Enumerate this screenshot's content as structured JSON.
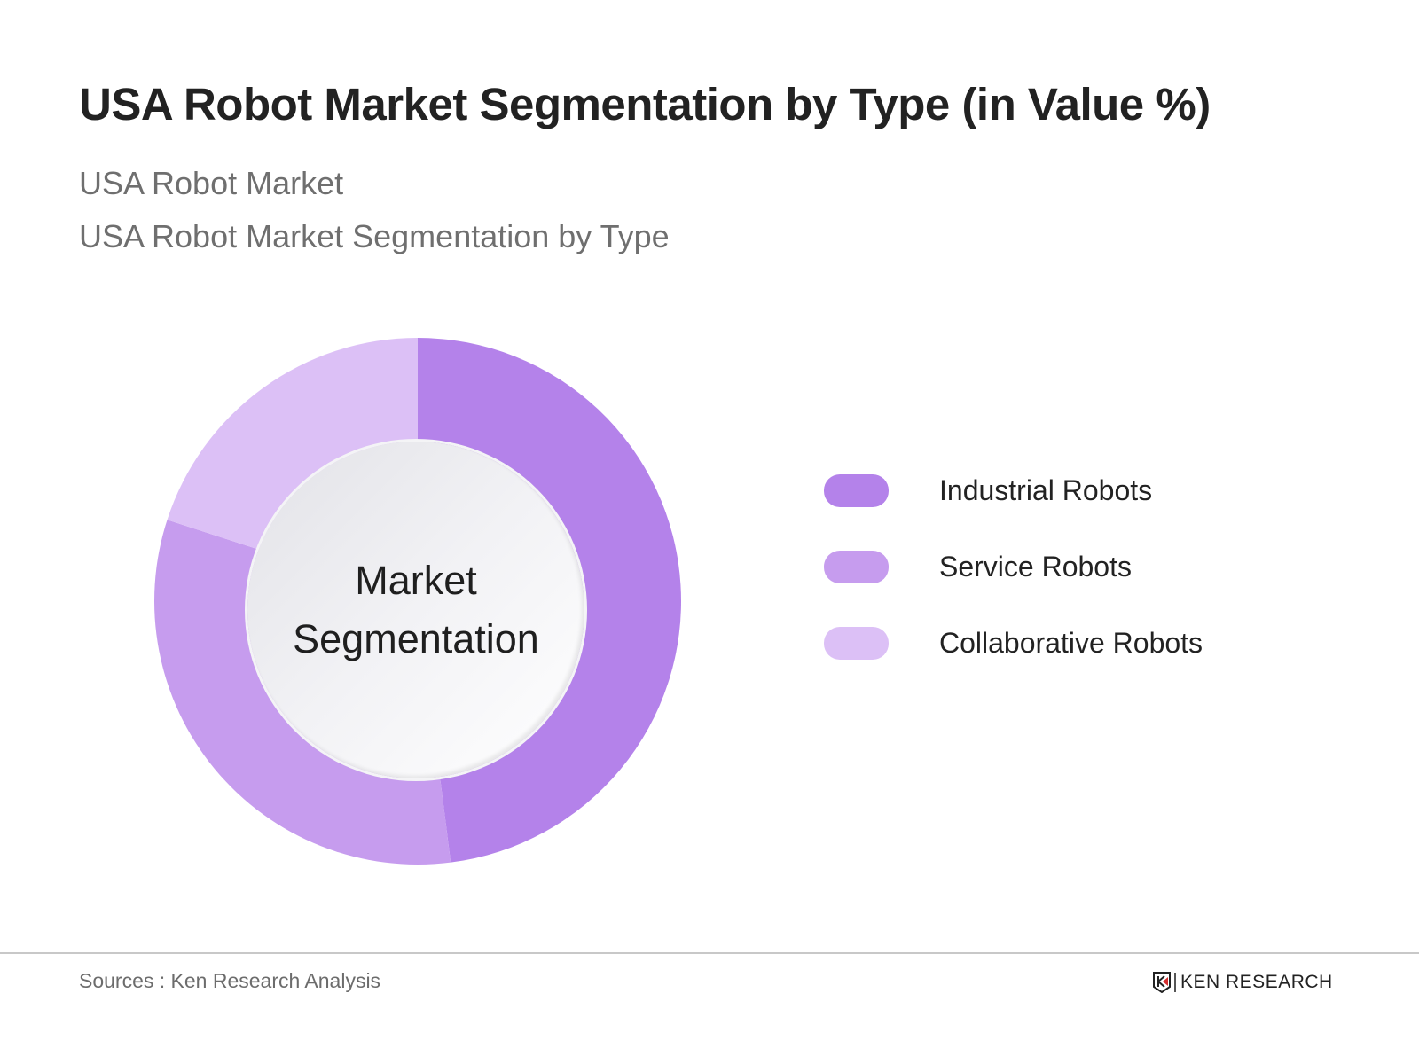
{
  "header": {
    "title": "USA Robot Market Segmentation by Type (in Value %)",
    "subtitle_1": "USA Robot Market",
    "subtitle_2": "USA Robot Market Segmentation by Type"
  },
  "chart": {
    "center_label_line1": "Market",
    "center_label_line2": "Segmentation"
  },
  "legend": [
    {
      "label": "Industrial Robots",
      "color": "#b482ea"
    },
    {
      "label": "Service Robots",
      "color": "#c69cee"
    },
    {
      "label": "Collaborative Robots",
      "color": "#dcc0f6"
    }
  ],
  "footer": {
    "source": "Sources : Ken Research Analysis",
    "brand": "KEN RESEARCH"
  },
  "chart_data": {
    "type": "pie",
    "variant": "donut",
    "title": "USA Robot Market Segmentation by Type (in Value %)",
    "subtitle": [
      "USA Robot Market",
      "USA Robot Market Segmentation by Type"
    ],
    "center_text": "Market Segmentation",
    "categories": [
      "Industrial Robots",
      "Service Robots",
      "Collaborative Robots"
    ],
    "values": [
      48,
      32,
      20
    ],
    "unit": "%",
    "colors": [
      "#b482ea",
      "#c69cee",
      "#dcc0f6"
    ],
    "start_angle": "12 o'clock, clockwise",
    "legend_position": "right",
    "source": "Sources : Ken Research Analysis"
  }
}
